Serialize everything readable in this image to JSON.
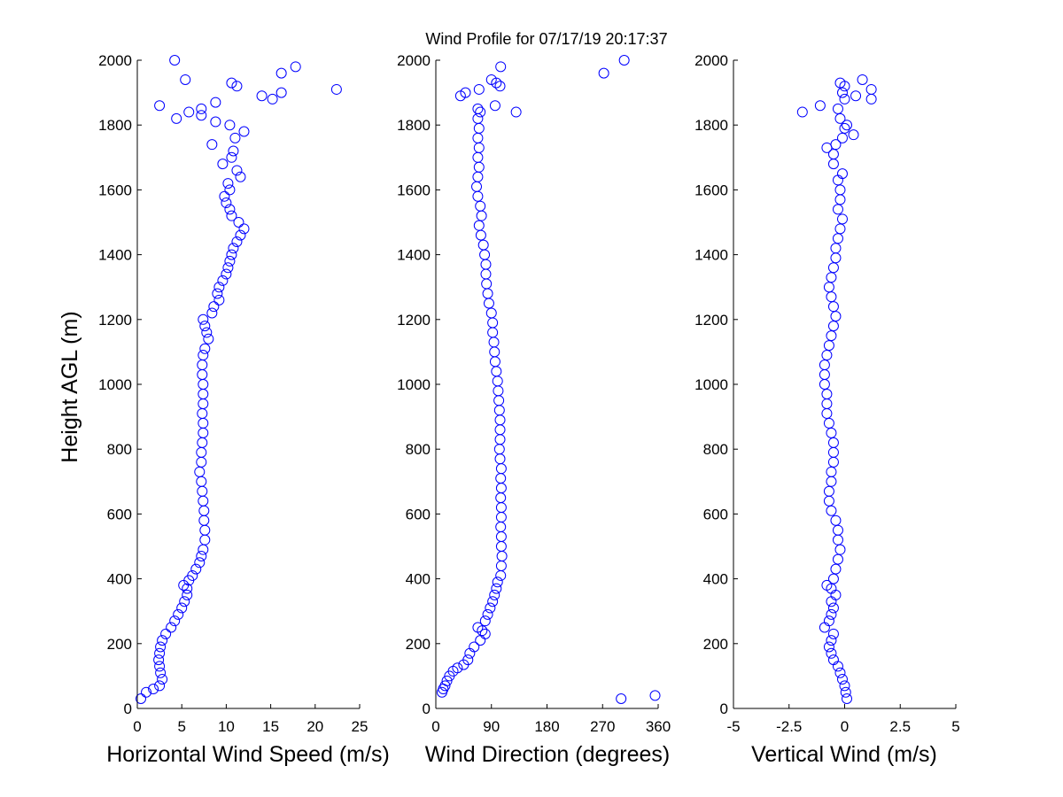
{
  "figure": {
    "title": "Wind Profile for  07/17/19 20:17:37",
    "ylabel": "Height AGL (m)"
  },
  "chart_data": [
    {
      "type": "scatter",
      "xlabel": "Horizontal Wind Speed (m/s)",
      "ylabel": "Height AGL (m)",
      "xlim": [
        0,
        25
      ],
      "ylim": [
        0,
        2000
      ],
      "xticks": [
        "0",
        "5",
        "10",
        "15",
        "20",
        "25"
      ],
      "yticks": [
        "0",
        "200",
        "400",
        "600",
        "800",
        "1000",
        "1200",
        "1400",
        "1600",
        "1800",
        "2000"
      ],
      "marker": "open circle",
      "color": "#0000ff",
      "points": [
        [
          0.4,
          30
        ],
        [
          1,
          50
        ],
        [
          1.8,
          60
        ],
        [
          2.5,
          70
        ],
        [
          2.8,
          90
        ],
        [
          2.6,
          110
        ],
        [
          2.5,
          130
        ],
        [
          2.4,
          150
        ],
        [
          2.5,
          170
        ],
        [
          2.6,
          190
        ],
        [
          2.8,
          210
        ],
        [
          3.2,
          230
        ],
        [
          3.8,
          250
        ],
        [
          4.2,
          270
        ],
        [
          4.6,
          290
        ],
        [
          5,
          310
        ],
        [
          5.3,
          330
        ],
        [
          5.6,
          350
        ],
        [
          5.6,
          370
        ],
        [
          5.2,
          380
        ],
        [
          5.8,
          395
        ],
        [
          6.2,
          410
        ],
        [
          6.6,
          430
        ],
        [
          7,
          450
        ],
        [
          7.2,
          470
        ],
        [
          7.4,
          490
        ],
        [
          7.6,
          520
        ],
        [
          7.6,
          550
        ],
        [
          7.5,
          580
        ],
        [
          7.5,
          610
        ],
        [
          7.4,
          640
        ],
        [
          7.3,
          670
        ],
        [
          7.2,
          700
        ],
        [
          7,
          730
        ],
        [
          7.2,
          760
        ],
        [
          7.2,
          790
        ],
        [
          7.3,
          820
        ],
        [
          7.4,
          850
        ],
        [
          7.4,
          880
        ],
        [
          7.3,
          910
        ],
        [
          7.4,
          940
        ],
        [
          7.4,
          970
        ],
        [
          7.4,
          1000
        ],
        [
          7.3,
          1030
        ],
        [
          7.3,
          1060
        ],
        [
          7.4,
          1090
        ],
        [
          7.6,
          1110
        ],
        [
          8,
          1140
        ],
        [
          7.8,
          1160
        ],
        [
          7.6,
          1180
        ],
        [
          7.4,
          1200
        ],
        [
          8.4,
          1220
        ],
        [
          8.6,
          1240
        ],
        [
          9.2,
          1260
        ],
        [
          9,
          1280
        ],
        [
          9.2,
          1300
        ],
        [
          9.6,
          1320
        ],
        [
          10,
          1340
        ],
        [
          10.2,
          1360
        ],
        [
          10.4,
          1380
        ],
        [
          10.6,
          1400
        ],
        [
          10.8,
          1420
        ],
        [
          11.2,
          1440
        ],
        [
          11.6,
          1460
        ],
        [
          12,
          1480
        ],
        [
          11.4,
          1500
        ],
        [
          10.6,
          1520
        ],
        [
          10.4,
          1540
        ],
        [
          10,
          1560
        ],
        [
          9.8,
          1580
        ],
        [
          10.4,
          1600
        ],
        [
          10.2,
          1620
        ],
        [
          11.6,
          1640
        ],
        [
          11.2,
          1660
        ],
        [
          9.6,
          1680
        ],
        [
          10.6,
          1700
        ],
        [
          10.8,
          1720
        ],
        [
          8.4,
          1740
        ],
        [
          11,
          1760
        ],
        [
          12,
          1780
        ],
        [
          10.4,
          1800
        ],
        [
          8.8,
          1810
        ],
        [
          7.2,
          1830
        ],
        [
          5.8,
          1840
        ],
        [
          4.4,
          1820
        ],
        [
          2.5,
          1860
        ],
        [
          7.2,
          1850
        ],
        [
          8.8,
          1870
        ],
        [
          14,
          1890
        ],
        [
          16.2,
          1900
        ],
        [
          15.2,
          1880
        ],
        [
          22.4,
          1910
        ],
        [
          11.2,
          1920
        ],
        [
          10.6,
          1930
        ],
        [
          5.4,
          1940
        ],
        [
          16.2,
          1960
        ],
        [
          17.8,
          1980
        ],
        [
          4.2,
          2000
        ]
      ]
    },
    {
      "type": "scatter",
      "xlabel": "Wind Direction (degrees)",
      "ylabel": "",
      "xlim": [
        0,
        360
      ],
      "ylim": [
        0,
        2000
      ],
      "xticks": [
        "0",
        "90",
        "180",
        "270",
        "360"
      ],
      "yticks": [
        "0",
        "200",
        "400",
        "600",
        "800",
        "1000",
        "1200",
        "1400",
        "1600",
        "1800",
        "2000"
      ],
      "marker": "open circle",
      "color": "#0000ff",
      "points": [
        [
          300,
          30
        ],
        [
          355,
          40
        ],
        [
          10,
          50
        ],
        [
          12,
          60
        ],
        [
          15,
          70
        ],
        [
          18,
          85
        ],
        [
          22,
          100
        ],
        [
          28,
          115
        ],
        [
          35,
          125
        ],
        [
          45,
          135
        ],
        [
          52,
          150
        ],
        [
          55,
          170
        ],
        [
          62,
          190
        ],
        [
          72,
          210
        ],
        [
          80,
          230
        ],
        [
          75,
          240
        ],
        [
          68,
          250
        ],
        [
          80,
          270
        ],
        [
          84,
          290
        ],
        [
          88,
          310
        ],
        [
          92,
          330
        ],
        [
          95,
          350
        ],
        [
          98,
          370
        ],
        [
          100,
          390
        ],
        [
          105,
          410
        ],
        [
          106,
          440
        ],
        [
          107,
          470
        ],
        [
          106,
          500
        ],
        [
          106,
          530
        ],
        [
          105,
          560
        ],
        [
          106,
          590
        ],
        [
          106,
          620
        ],
        [
          105,
          650
        ],
        [
          106,
          680
        ],
        [
          105,
          710
        ],
        [
          106,
          740
        ],
        [
          104,
          770
        ],
        [
          103,
          800
        ],
        [
          104,
          830
        ],
        [
          104,
          860
        ],
        [
          104,
          890
        ],
        [
          103,
          920
        ],
        [
          102,
          950
        ],
        [
          101,
          980
        ],
        [
          100,
          1010
        ],
        [
          98,
          1040
        ],
        [
          96,
          1070
        ],
        [
          95,
          1100
        ],
        [
          94,
          1130
        ],
        [
          92,
          1160
        ],
        [
          92,
          1190
        ],
        [
          90,
          1220
        ],
        [
          86,
          1250
        ],
        [
          84,
          1280
        ],
        [
          82,
          1310
        ],
        [
          81,
          1340
        ],
        [
          81,
          1370
        ],
        [
          79,
          1400
        ],
        [
          77,
          1430
        ],
        [
          73,
          1460
        ],
        [
          70,
          1490
        ],
        [
          74,
          1520
        ],
        [
          72,
          1550
        ],
        [
          68,
          1580
        ],
        [
          66,
          1610
        ],
        [
          68,
          1640
        ],
        [
          70,
          1670
        ],
        [
          68,
          1700
        ],
        [
          70,
          1730
        ],
        [
          68,
          1760
        ],
        [
          70,
          1790
        ],
        [
          68,
          1820
        ],
        [
          72,
          1840
        ],
        [
          68,
          1850
        ],
        [
          96,
          1860
        ],
        [
          130,
          1840
        ],
        [
          40,
          1890
        ],
        [
          48,
          1900
        ],
        [
          70,
          1910
        ],
        [
          90,
          1940
        ],
        [
          98,
          1930
        ],
        [
          104,
          1920
        ],
        [
          105,
          1980
        ],
        [
          272,
          1960
        ],
        [
          305,
          2000
        ]
      ]
    },
    {
      "type": "scatter",
      "xlabel": "Vertical Wind (m/s)",
      "ylabel": "",
      "xlim": [
        -5,
        5
      ],
      "ylim": [
        0,
        2000
      ],
      "xticks": [
        "-5",
        "-2.5",
        "0",
        "2.5",
        "5"
      ],
      "yticks": [
        "0",
        "200",
        "400",
        "600",
        "800",
        "1000",
        "1200",
        "1400",
        "1600",
        "1800",
        "2000"
      ],
      "marker": "open circle",
      "color": "#0000ff",
      "points": [
        [
          0.1,
          30
        ],
        [
          0.05,
          50
        ],
        [
          0,
          70
        ],
        [
          -0.1,
          90
        ],
        [
          -0.2,
          110
        ],
        [
          -0.3,
          130
        ],
        [
          -0.5,
          150
        ],
        [
          -0.6,
          170
        ],
        [
          -0.7,
          190
        ],
        [
          -0.6,
          210
        ],
        [
          -0.5,
          230
        ],
        [
          -0.9,
          250
        ],
        [
          -0.7,
          270
        ],
        [
          -0.6,
          290
        ],
        [
          -0.5,
          310
        ],
        [
          -0.6,
          330
        ],
        [
          -0.4,
          350
        ],
        [
          -0.6,
          370
        ],
        [
          -0.8,
          380
        ],
        [
          -0.5,
          400
        ],
        [
          -0.4,
          430
        ],
        [
          -0.3,
          460
        ],
        [
          -0.2,
          490
        ],
        [
          -0.3,
          520
        ],
        [
          -0.3,
          550
        ],
        [
          -0.4,
          580
        ],
        [
          -0.6,
          610
        ],
        [
          -0.7,
          640
        ],
        [
          -0.7,
          670
        ],
        [
          -0.6,
          700
        ],
        [
          -0.6,
          730
        ],
        [
          -0.5,
          760
        ],
        [
          -0.5,
          790
        ],
        [
          -0.5,
          820
        ],
        [
          -0.6,
          850
        ],
        [
          -0.7,
          880
        ],
        [
          -0.8,
          910
        ],
        [
          -0.8,
          940
        ],
        [
          -0.8,
          970
        ],
        [
          -0.9,
          1000
        ],
        [
          -0.9,
          1030
        ],
        [
          -0.9,
          1060
        ],
        [
          -0.8,
          1090
        ],
        [
          -0.7,
          1120
        ],
        [
          -0.6,
          1150
        ],
        [
          -0.5,
          1180
        ],
        [
          -0.4,
          1210
        ],
        [
          -0.5,
          1240
        ],
        [
          -0.6,
          1270
        ],
        [
          -0.7,
          1300
        ],
        [
          -0.6,
          1330
        ],
        [
          -0.5,
          1360
        ],
        [
          -0.4,
          1390
        ],
        [
          -0.4,
          1420
        ],
        [
          -0.3,
          1450
        ],
        [
          -0.2,
          1480
        ],
        [
          -0.1,
          1510
        ],
        [
          -0.3,
          1540
        ],
        [
          -0.2,
          1570
        ],
        [
          -0.2,
          1600
        ],
        [
          -0.3,
          1630
        ],
        [
          -0.1,
          1650
        ],
        [
          -0.5,
          1680
        ],
        [
          -0.5,
          1710
        ],
        [
          -0.8,
          1730
        ],
        [
          -0.4,
          1740
        ],
        [
          -0.1,
          1760
        ],
        [
          0.4,
          1770
        ],
        [
          0,
          1790
        ],
        [
          0.1,
          1800
        ],
        [
          -0.2,
          1820
        ],
        [
          -1.9,
          1840
        ],
        [
          -1.1,
          1860
        ],
        [
          -0.3,
          1850
        ],
        [
          0,
          1880
        ],
        [
          1.2,
          1880
        ],
        [
          1.2,
          1910
        ],
        [
          0.5,
          1890
        ],
        [
          -0.1,
          1900
        ],
        [
          0,
          1920
        ],
        [
          -0.2,
          1930
        ],
        [
          0.8,
          1940
        ]
      ]
    }
  ]
}
